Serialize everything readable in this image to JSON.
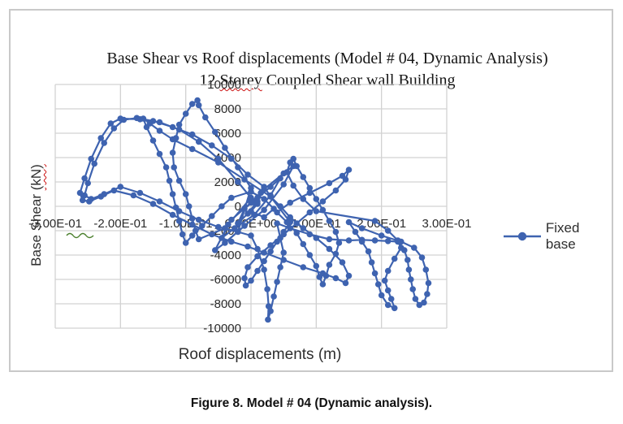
{
  "figure": {
    "caption_prefix": "Figure 8.",
    "caption_rest": " Model # 04 (Dynamic analysis)."
  },
  "chart_data": {
    "type": "line",
    "title": "Base Shear vs Roof displacements (Model # 04, Dynamic Analysis)",
    "subtitle_prefix": "12 ",
    "subtitle_word": "Storey",
    "subtitle_rest": " Coupled Shear wall Building",
    "xlabel": "Roof displacements (m)",
    "ylabel_prefix": "Base Shear ",
    "ylabel_unit": "(kN)",
    "xlim": [
      -0.3,
      0.3
    ],
    "ylim": [
      -10000,
      10000
    ],
    "grid": true,
    "x_ticks": [
      -0.3,
      -0.2,
      -0.1,
      0.0,
      0.1,
      0.2,
      0.3
    ],
    "x_tick_labels": [
      "-3.00E-01",
      "-2.00E-01",
      "-1.00E-01",
      "0.00E+00",
      "1.00E-01",
      "2.00E-01",
      "3.00E-01"
    ],
    "y_ticks": [
      10000,
      8000,
      6000,
      4000,
      2000,
      0,
      -2000,
      -4000,
      -6000,
      -8000,
      -10000
    ],
    "y_tick_labels": [
      "10000",
      "8000",
      "6000",
      "4000",
      "2000",
      "0",
      "-2000",
      "-4000",
      "-6000",
      "-8000",
      "-10000"
    ],
    "legend": {
      "position": "right",
      "entries": [
        "Fixed base"
      ]
    },
    "colors": {
      "series": "#3e63b0",
      "gridline": "#d2d2d2",
      "tick_text": "#2b2b2b",
      "squiggle_green": "#4a7f2c",
      "squiggle_red": "#cc1111"
    },
    "series": [
      {
        "name": "Fixed base",
        "color": "#3e63b0",
        "marker": "circle",
        "points": [
          [
            0.005,
            300
          ],
          [
            0.015,
            1100
          ],
          [
            0.01,
            400
          ],
          [
            -0.005,
            -600
          ],
          [
            -0.02,
            -1400
          ],
          [
            -0.01,
            -200
          ],
          [
            0.01,
            700
          ],
          [
            0.03,
            1600
          ],
          [
            0.045,
            2300
          ],
          [
            0.03,
            900
          ],
          [
            0.005,
            -700
          ],
          [
            -0.025,
            -1800
          ],
          [
            -0.045,
            -2600
          ],
          [
            -0.03,
            -1100
          ],
          [
            0,
            300
          ],
          [
            0.02,
            1400
          ],
          [
            0.05,
            2700
          ],
          [
            0.065,
            3300
          ],
          [
            0.05,
            1800
          ],
          [
            0.02,
            -300
          ],
          [
            -0.01,
            -1600
          ],
          [
            -0.04,
            -3000
          ],
          [
            -0.055,
            -3600
          ],
          [
            -0.035,
            -1500
          ],
          [
            0,
            700
          ],
          [
            -0.02,
            2000
          ],
          [
            -0.05,
            3900
          ],
          [
            -0.08,
            5300
          ],
          [
            -0.11,
            6300
          ],
          [
            -0.14,
            6900
          ],
          [
            -0.17,
            7150
          ],
          [
            -0.2,
            7200
          ],
          [
            -0.215,
            6800
          ],
          [
            -0.23,
            5600
          ],
          [
            -0.245,
            3900
          ],
          [
            -0.255,
            2300
          ],
          [
            -0.262,
            1100
          ],
          [
            -0.258,
            500
          ],
          [
            -0.248,
            400
          ],
          [
            -0.23,
            800
          ],
          [
            -0.21,
            1300
          ],
          [
            -0.18,
            900
          ],
          [
            -0.15,
            200
          ],
          [
            -0.12,
            -700
          ],
          [
            -0.09,
            -1500
          ],
          [
            -0.06,
            -2300
          ],
          [
            -0.03,
            -2900
          ],
          [
            -0.005,
            -3300
          ],
          [
            0.02,
            -3800
          ],
          [
            0.05,
            -4400
          ],
          [
            0.08,
            -5000
          ],
          [
            0.11,
            -5500
          ],
          [
            0.13,
            -5900
          ],
          [
            0.145,
            -6300
          ],
          [
            0.15,
            -5700
          ],
          [
            0.14,
            -4600
          ],
          [
            0.12,
            -3500
          ],
          [
            0.1,
            -2600
          ],
          [
            0.08,
            -1800
          ],
          [
            0.06,
            -900
          ],
          [
            0.045,
            0
          ],
          [
            0.03,
            800
          ],
          [
            0.02,
            1600
          ],
          [
            -0.005,
            2600
          ],
          [
            -0.03,
            3900
          ],
          [
            -0.06,
            5000
          ],
          [
            -0.09,
            5900
          ],
          [
            -0.12,
            6500
          ],
          [
            -0.15,
            7000
          ],
          [
            -0.175,
            7250
          ],
          [
            -0.195,
            7100
          ],
          [
            -0.21,
            6400
          ],
          [
            -0.225,
            5200
          ],
          [
            -0.24,
            3500
          ],
          [
            -0.25,
            1900
          ],
          [
            -0.255,
            900
          ],
          [
            -0.245,
            600
          ],
          [
            -0.225,
            1000
          ],
          [
            -0.2,
            1600
          ],
          [
            -0.17,
            1100
          ],
          [
            -0.14,
            400
          ],
          [
            -0.11,
            -400
          ],
          [
            -0.08,
            -1100
          ],
          [
            -0.05,
            -1700
          ],
          [
            -0.02,
            -2100
          ],
          [
            0,
            1500
          ],
          [
            -0.02,
            3200
          ],
          [
            -0.04,
            4800
          ],
          [
            -0.055,
            6100
          ],
          [
            -0.07,
            7300
          ],
          [
            -0.08,
            8300
          ],
          [
            -0.082,
            8700
          ],
          [
            -0.09,
            8400
          ],
          [
            -0.1,
            7600
          ],
          [
            -0.11,
            6700
          ],
          [
            -0.115,
            5600
          ],
          [
            -0.12,
            4400
          ],
          [
            -0.118,
            3200
          ],
          [
            -0.11,
            2100
          ],
          [
            -0.1,
            1000
          ],
          [
            -0.095,
            0
          ],
          [
            -0.09,
            -1000
          ],
          [
            -0.085,
            -2000
          ],
          [
            -0.08,
            -2700
          ],
          [
            -0.04,
            -1800
          ],
          [
            0,
            -2400
          ],
          [
            0.01,
            -3500
          ],
          [
            0.02,
            -5200
          ],
          [
            0.025,
            -6800
          ],
          [
            0.027,
            -8200
          ],
          [
            0.026,
            -9300
          ],
          [
            0.03,
            -8600
          ],
          [
            0.035,
            -7400
          ],
          [
            0.04,
            -6200
          ],
          [
            0.045,
            -5000
          ],
          [
            0.05,
            -3800
          ],
          [
            0.045,
            -2600
          ],
          [
            0.04,
            -1400
          ],
          [
            0.06,
            -1800
          ],
          [
            0.09,
            -2300
          ],
          [
            0.12,
            -2700
          ],
          [
            0.15,
            -2800
          ],
          [
            0.17,
            -2750
          ],
          [
            0.19,
            -2800
          ],
          [
            0.21,
            -2850
          ],
          [
            0.225,
            -2900
          ],
          [
            0.23,
            -3400
          ],
          [
            0.22,
            -4300
          ],
          [
            0.21,
            -5300
          ],
          [
            0.205,
            -6100
          ],
          [
            0.21,
            -6900
          ],
          [
            0.215,
            -7600
          ],
          [
            0.22,
            -8350
          ],
          [
            0.21,
            -8100
          ],
          [
            0.2,
            -7300
          ],
          [
            0.195,
            -6400
          ],
          [
            0.19,
            -5500
          ],
          [
            0.185,
            -4600
          ],
          [
            0.18,
            -3700
          ],
          [
            0.17,
            -2900
          ],
          [
            0.16,
            -2100
          ],
          [
            0.15,
            -1300
          ],
          [
            0.17,
            -1800
          ],
          [
            0.2,
            -2400
          ],
          [
            0.23,
            -2900
          ],
          [
            0.25,
            -3400
          ],
          [
            0.262,
            -4200
          ],
          [
            0.268,
            -5200
          ],
          [
            0.272,
            -6300
          ],
          [
            0.27,
            -7200
          ],
          [
            0.265,
            -7900
          ],
          [
            0.258,
            -8100
          ],
          [
            0.252,
            -7600
          ],
          [
            0.248,
            -6800
          ],
          [
            0.245,
            -6000
          ],
          [
            0.242,
            -5200
          ],
          [
            0.24,
            -4400
          ],
          [
            0.235,
            -3600
          ],
          [
            0.225,
            -2800
          ],
          [
            0.21,
            -2000
          ],
          [
            0.19,
            -1200
          ],
          [
            0.1,
            -400
          ],
          [
            0.08,
            600
          ],
          [
            0.065,
            1700
          ],
          [
            0.055,
            2800
          ],
          [
            0.06,
            3600
          ],
          [
            0.065,
            3900
          ],
          [
            0.07,
            3300
          ],
          [
            0.08,
            2400
          ],
          [
            0.09,
            1500
          ],
          [
            0.1,
            600
          ],
          [
            0.11,
            -300
          ],
          [
            0.12,
            -1200
          ],
          [
            0.13,
            -2100
          ],
          [
            0.135,
            -3000
          ],
          [
            0.13,
            -3900
          ],
          [
            0.12,
            -4800
          ],
          [
            0.115,
            -5700
          ],
          [
            0.11,
            -6400
          ],
          [
            0.105,
            -5800
          ],
          [
            0.1,
            -4900
          ],
          [
            0.09,
            -4000
          ],
          [
            0.08,
            -3100
          ],
          [
            0.07,
            -2200
          ],
          [
            0.055,
            -1300
          ],
          [
            0.04,
            -500
          ],
          [
            0.06,
            300
          ],
          [
            0.09,
            1100
          ],
          [
            0.12,
            1900
          ],
          [
            0.14,
            2500
          ],
          [
            0.15,
            3000
          ],
          [
            0.145,
            2200
          ],
          [
            0.13,
            1300
          ],
          [
            0.11,
            400
          ],
          [
            0.09,
            -500
          ],
          [
            0.07,
            -1400
          ],
          [
            0.05,
            -2300
          ],
          [
            0.03,
            -3200
          ],
          [
            0.01,
            -4100
          ],
          [
            -0.005,
            -5000
          ],
          [
            -0.01,
            -5900
          ],
          [
            -0.008,
            -6500
          ],
          [
            0,
            -6100
          ],
          [
            0.01,
            -5300
          ],
          [
            0.02,
            -4500
          ],
          [
            0.03,
            -3700
          ],
          [
            0.04,
            -2900
          ],
          [
            0.05,
            -2100
          ],
          [
            0.06,
            -1300
          ],
          [
            0.03,
            800
          ],
          [
            -0.01,
            2200
          ],
          [
            -0.05,
            3600
          ],
          [
            -0.09,
            4700
          ],
          [
            -0.12,
            5500
          ],
          [
            -0.14,
            6200
          ],
          [
            -0.155,
            6800
          ],
          [
            -0.165,
            7200
          ],
          [
            -0.16,
            6500
          ],
          [
            -0.15,
            5400
          ],
          [
            -0.14,
            4300
          ],
          [
            -0.13,
            3200
          ],
          [
            -0.125,
            2100
          ],
          [
            -0.12,
            1000
          ],
          [
            -0.115,
            -100
          ],
          [
            -0.11,
            -1200
          ],
          [
            -0.105,
            -2300
          ],
          [
            -0.1,
            -3000
          ],
          [
            -0.09,
            -2400
          ],
          [
            -0.075,
            -1600
          ],
          [
            -0.06,
            -800
          ],
          [
            -0.045,
            0
          ],
          [
            -0.03,
            700
          ],
          [
            0,
            1200
          ],
          [
            0.02,
            600
          ],
          [
            0.035,
            -200
          ],
          [
            0.02,
            -900
          ],
          [
            0,
            -400
          ],
          [
            0.01,
            200
          ]
        ]
      }
    ]
  }
}
